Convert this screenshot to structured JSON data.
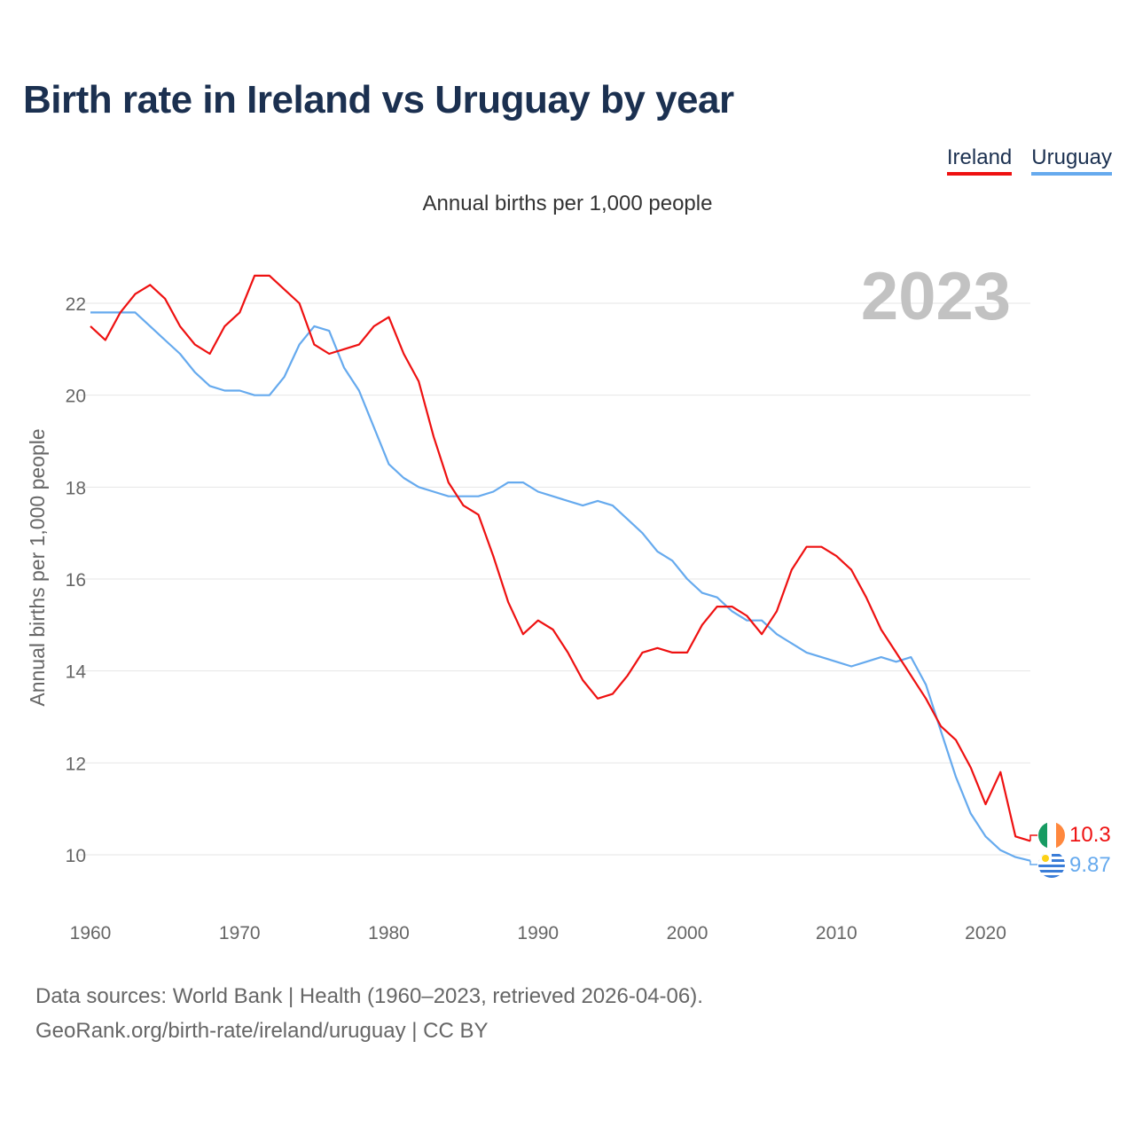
{
  "title": "Birth rate in Ireland vs Uruguay by year",
  "subtitle": "Annual births per 1,000 people",
  "year_watermark": "2023",
  "legend": [
    {
      "name": "Ireland",
      "color": "#ee1111"
    },
    {
      "name": "Uruguay",
      "color": "#66aaee"
    }
  ],
  "source_lines": [
    "Data sources: World Bank | Health (1960–2023, retrieved 2026-04-06).",
    "GeoRank.org/birth-rate/ireland/uruguay | CC BY"
  ],
  "chart_data": {
    "type": "line",
    "title": "Birth rate in Ireland vs Uruguay by year",
    "xlabel": "",
    "ylabel": "Annual births per 1,000 people",
    "xlim": [
      1960,
      2023
    ],
    "ylim": [
      9,
      23
    ],
    "x_ticks": [
      1960,
      1970,
      1980,
      1990,
      2000,
      2010,
      2020
    ],
    "y_ticks": [
      10,
      12,
      14,
      16,
      18,
      20,
      22
    ],
    "grid": true,
    "legend_position": "top-right",
    "x": [
      1960,
      1961,
      1962,
      1963,
      1964,
      1965,
      1966,
      1967,
      1968,
      1969,
      1970,
      1971,
      1972,
      1973,
      1974,
      1975,
      1976,
      1977,
      1978,
      1979,
      1980,
      1981,
      1982,
      1983,
      1984,
      1985,
      1986,
      1987,
      1988,
      1989,
      1990,
      1991,
      1992,
      1993,
      1994,
      1995,
      1996,
      1997,
      1998,
      1999,
      2000,
      2001,
      2002,
      2003,
      2004,
      2005,
      2006,
      2007,
      2008,
      2009,
      2010,
      2011,
      2012,
      2013,
      2014,
      2015,
      2016,
      2017,
      2018,
      2019,
      2020,
      2021,
      2022,
      2023
    ],
    "series": [
      {
        "name": "Ireland",
        "color": "#ee1111",
        "end_label": "10.3",
        "values": [
          21.5,
          21.2,
          21.8,
          22.2,
          22.4,
          22.1,
          21.5,
          21.1,
          20.9,
          21.5,
          21.8,
          22.6,
          22.6,
          22.3,
          22.0,
          21.1,
          20.9,
          21.0,
          21.1,
          21.5,
          21.7,
          20.9,
          20.3,
          19.1,
          18.1,
          17.6,
          17.4,
          16.5,
          15.5,
          14.8,
          15.1,
          14.9,
          14.4,
          13.8,
          13.4,
          13.5,
          13.9,
          14.4,
          14.5,
          14.4,
          14.4,
          15.0,
          15.4,
          15.4,
          15.2,
          14.8,
          15.3,
          16.2,
          16.7,
          16.7,
          16.5,
          16.2,
          15.6,
          14.9,
          14.4,
          13.9,
          13.4,
          12.8,
          12.5,
          11.9,
          11.1,
          11.8,
          10.4,
          10.3
        ]
      },
      {
        "name": "Uruguay",
        "color": "#66aaee",
        "end_label": "9.87",
        "values": [
          21.8,
          21.8,
          21.8,
          21.8,
          21.5,
          21.2,
          20.9,
          20.5,
          20.2,
          20.1,
          20.1,
          20.0,
          20.0,
          20.4,
          21.1,
          21.5,
          21.4,
          20.6,
          20.1,
          19.3,
          18.5,
          18.2,
          18.0,
          17.9,
          17.8,
          17.8,
          17.8,
          17.9,
          18.1,
          18.1,
          17.9,
          17.8,
          17.7,
          17.6,
          17.7,
          17.6,
          17.3,
          17.0,
          16.6,
          16.4,
          16.0,
          15.7,
          15.6,
          15.3,
          15.1,
          15.1,
          14.8,
          14.6,
          14.4,
          14.3,
          14.2,
          14.1,
          14.2,
          14.3,
          14.2,
          14.3,
          13.7,
          12.7,
          11.7,
          10.9,
          10.4,
          10.1,
          9.95,
          9.87
        ]
      }
    ]
  }
}
